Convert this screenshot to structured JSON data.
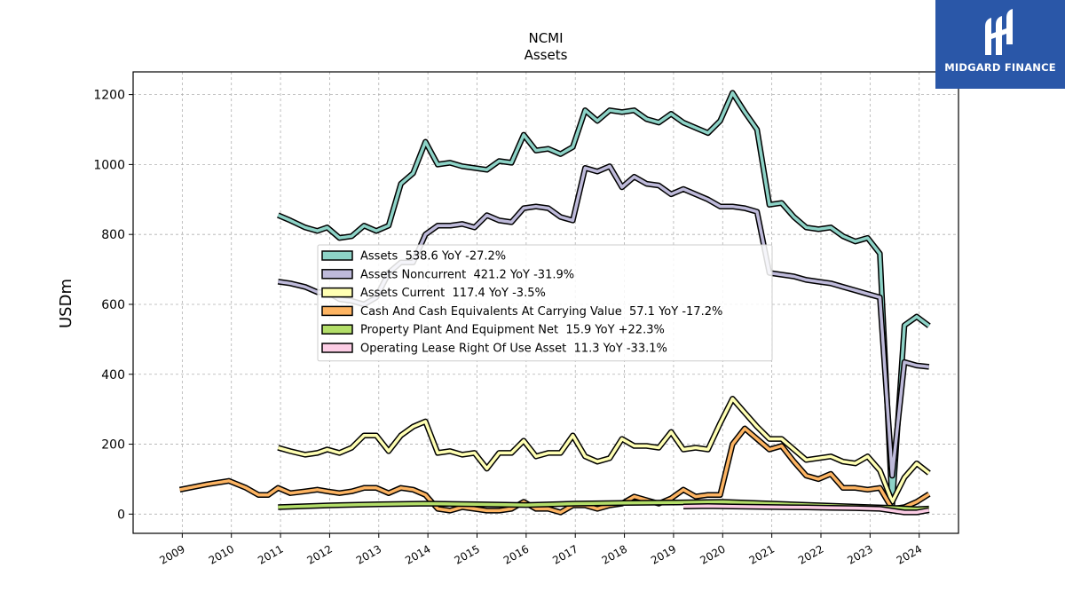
{
  "brand": {
    "name": "MIDGARD FINANCE",
    "color": "#2a57a8"
  },
  "chart_data": {
    "type": "line",
    "title": "NCMI",
    "subtitle": "Assets",
    "ylabel": "USDm",
    "xlabel": "",
    "ylim": [
      -55,
      1265
    ],
    "xlim": [
      2008.0,
      2024.8
    ],
    "yticks": [
      0,
      200,
      400,
      600,
      800,
      1000,
      1200
    ],
    "xticks": [
      "2009",
      "2010",
      "2011",
      "2012",
      "2013",
      "2014",
      "2015",
      "2016",
      "2017",
      "2018",
      "2019",
      "2020",
      "2021",
      "2022",
      "2023",
      "2024"
    ],
    "grid": true,
    "legend_position": "center",
    "series": [
      {
        "name": "Assets",
        "legend": "Assets  538.6 YoY -27.2%",
        "color": "#8dd3c7",
        "x": [
          2010.95,
          2011.2,
          2011.5,
          2011.75,
          2011.95,
          2012.2,
          2012.45,
          2012.7,
          2012.95,
          2013.2,
          2013.45,
          2013.7,
          2013.95,
          2014.2,
          2014.45,
          2014.7,
          2014.95,
          2015.2,
          2015.45,
          2015.7,
          2015.95,
          2016.2,
          2016.45,
          2016.7,
          2016.95,
          2017.2,
          2017.45,
          2017.7,
          2017.95,
          2018.2,
          2018.45,
          2018.7,
          2018.95,
          2019.2,
          2019.45,
          2019.7,
          2019.95,
          2020.2,
          2020.45,
          2020.7,
          2020.95,
          2021.2,
          2021.45,
          2021.7,
          2021.95,
          2022.2,
          2022.45,
          2022.7,
          2022.95,
          2023.2,
          2023.45,
          2023.7,
          2023.95,
          2024.2
        ],
        "y": [
          855,
          840,
          820,
          810,
          820,
          790,
          795,
          825,
          810,
          825,
          945,
          975,
          1065,
          1000,
          1005,
          995,
          990,
          985,
          1010,
          1005,
          1085,
          1040,
          1045,
          1030,
          1050,
          1155,
          1125,
          1155,
          1150,
          1155,
          1130,
          1120,
          1145,
          1120,
          1105,
          1090,
          1125,
          1205,
          1150,
          1100,
          885,
          890,
          850,
          820,
          815,
          820,
          795,
          780,
          790,
          745,
          25,
          540,
          565,
          538.6
        ]
      },
      {
        "name": "Assets Noncurrent",
        "legend": "Assets Noncurrent  421.2 YoY -31.9%",
        "color": "#bebada",
        "x": [
          2010.95,
          2011.2,
          2011.5,
          2011.75,
          2011.95,
          2012.2,
          2012.45,
          2012.7,
          2012.95,
          2013.2,
          2013.45,
          2013.7,
          2013.95,
          2014.2,
          2014.45,
          2014.7,
          2014.95,
          2015.2,
          2015.45,
          2015.7,
          2015.95,
          2016.2,
          2016.45,
          2016.7,
          2016.95,
          2017.2,
          2017.45,
          2017.7,
          2017.95,
          2018.2,
          2018.45,
          2018.7,
          2018.95,
          2019.2,
          2019.45,
          2019.7,
          2019.95,
          2020.2,
          2020.45,
          2020.7,
          2020.95,
          2021.2,
          2021.45,
          2021.7,
          2021.95,
          2022.2,
          2022.45,
          2022.7,
          2022.95,
          2023.2,
          2023.45,
          2023.7,
          2023.95,
          2024.2
        ],
        "y": [
          665,
          660,
          650,
          635,
          635,
          615,
          610,
          600,
          620,
          690,
          720,
          720,
          800,
          825,
          825,
          830,
          820,
          855,
          840,
          835,
          875,
          880,
          875,
          850,
          840,
          990,
          980,
          995,
          935,
          965,
          945,
          940,
          915,
          930,
          915,
          900,
          880,
          880,
          875,
          865,
          690,
          685,
          680,
          670,
          665,
          660,
          650,
          640,
          630,
          620,
          110,
          435,
          425,
          421.2
        ]
      },
      {
        "name": "Assets Current",
        "legend": "Assets Current  117.4 YoY -3.5%",
        "color": "#ffffb3",
        "x": [
          2010.95,
          2011.2,
          2011.5,
          2011.75,
          2011.95,
          2012.2,
          2012.45,
          2012.7,
          2012.95,
          2013.2,
          2013.45,
          2013.7,
          2013.95,
          2014.2,
          2014.45,
          2014.7,
          2014.95,
          2015.2,
          2015.45,
          2015.7,
          2015.95,
          2016.2,
          2016.45,
          2016.7,
          2016.95,
          2017.2,
          2017.45,
          2017.7,
          2017.95,
          2018.2,
          2018.45,
          2018.7,
          2018.95,
          2019.2,
          2019.45,
          2019.7,
          2019.95,
          2020.2,
          2020.45,
          2020.7,
          2020.95,
          2021.2,
          2021.45,
          2021.7,
          2021.95,
          2022.2,
          2022.45,
          2022.7,
          2022.95,
          2023.2,
          2023.45,
          2023.7,
          2023.95,
          2024.2
        ],
        "y": [
          190,
          180,
          170,
          175,
          185,
          175,
          190,
          225,
          225,
          180,
          225,
          250,
          265,
          175,
          180,
          170,
          175,
          130,
          175,
          175,
          210,
          165,
          175,
          175,
          225,
          165,
          150,
          160,
          215,
          195,
          195,
          190,
          235,
          185,
          190,
          185,
          260,
          330,
          290,
          250,
          215,
          215,
          185,
          155,
          160,
          165,
          150,
          145,
          165,
          125,
          35,
          105,
          145,
          117.4
        ]
      },
      {
        "name": "Cash And Cash Equivalents At Carrying Value",
        "legend": "Cash And Cash Equivalents At Carrying Value  57.1 YoY -17.2%",
        "color": "#fdb462",
        "x": [
          2008.95,
          2009.5,
          2009.95,
          2010.3,
          2010.55,
          2010.75,
          2010.95,
          2011.2,
          2011.5,
          2011.75,
          2011.95,
          2012.2,
          2012.45,
          2012.7,
          2012.95,
          2013.2,
          2013.45,
          2013.7,
          2013.95,
          2014.2,
          2014.45,
          2014.7,
          2014.95,
          2015.2,
          2015.45,
          2015.7,
          2015.95,
          2016.2,
          2016.45,
          2016.7,
          2016.95,
          2017.2,
          2017.45,
          2017.7,
          2017.95,
          2018.2,
          2018.45,
          2018.7,
          2018.95,
          2019.2,
          2019.45,
          2019.7,
          2019.95,
          2020.2,
          2020.45,
          2020.7,
          2020.95,
          2021.2,
          2021.45,
          2021.7,
          2021.95,
          2022.2,
          2022.45,
          2022.7,
          2022.95,
          2023.2,
          2023.45,
          2023.7,
          2023.95,
          2024.2
        ],
        "y": [
          70,
          85,
          95,
          75,
          55,
          55,
          75,
          60,
          65,
          70,
          65,
          60,
          65,
          75,
          75,
          60,
          75,
          70,
          55,
          15,
          10,
          20,
          15,
          10,
          10,
          15,
          35,
          15,
          15,
          5,
          25,
          25,
          15,
          25,
          30,
          50,
          40,
          30,
          45,
          70,
          50,
          55,
          55,
          200,
          245,
          215,
          185,
          195,
          150,
          110,
          100,
          115,
          75,
          75,
          70,
          75,
          15,
          20,
          35,
          57.1
        ]
      },
      {
        "name": "Property Plant And Equipment Net",
        "legend": "Property Plant And Equipment Net  15.9 YoY +22.3%",
        "color": "#b3de69",
        "x": [
          2010.95,
          2012.0,
          2013.0,
          2014.0,
          2015.0,
          2016.0,
          2017.0,
          2018.0,
          2019.0,
          2020.0,
          2021.0,
          2022.0,
          2023.0,
          2023.45,
          2023.7,
          2023.95,
          2024.2
        ],
        "y": [
          20,
          25,
          28,
          30,
          28,
          26,
          30,
          32,
          33,
          35,
          30,
          25,
          20,
          18,
          16,
          14,
          15.9
        ]
      },
      {
        "name": "Operating Lease Right Of Use Asset",
        "legend": "Operating Lease Right Of Use Asset  11.3 YoY -33.1%",
        "color": "#fccde5",
        "x": [
          2019.2,
          2019.7,
          2020.2,
          2020.7,
          2021.2,
          2021.7,
          2022.2,
          2022.7,
          2023.2,
          2023.45,
          2023.7,
          2023.95,
          2024.2
        ],
        "y": [
          22,
          23,
          22,
          21,
          20,
          19,
          18,
          17,
          15,
          10,
          5,
          5,
          11.3
        ]
      }
    ]
  }
}
